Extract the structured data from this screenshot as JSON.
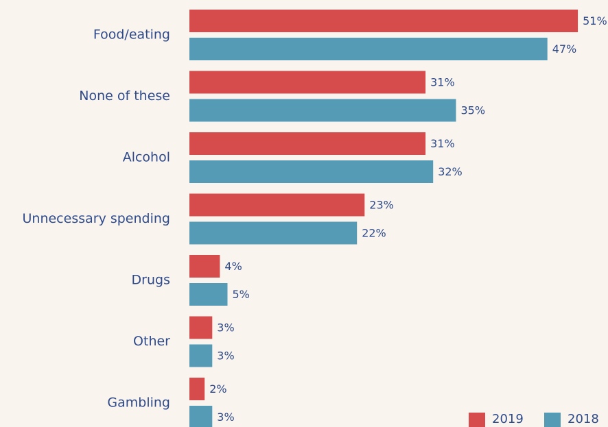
{
  "chart_data": {
    "type": "bar",
    "orientation": "horizontal",
    "categories": [
      "Food/eating",
      "None of these",
      "Alcohol",
      "Unnecessary spending",
      "Drugs",
      "Other",
      "Gambling"
    ],
    "series": [
      {
        "name": "2019",
        "color": "#d64b4b",
        "values": [
          51,
          31,
          31,
          23,
          4,
          3,
          2
        ],
        "value_labels": [
          "51%",
          "31%",
          "31%",
          "23%",
          "4%",
          "3%",
          "2%"
        ]
      },
      {
        "name": "2018",
        "color": "#559bb6",
        "values": [
          47,
          35,
          32,
          22,
          5,
          3,
          3
        ],
        "value_labels": [
          "47%",
          "35%",
          "32%",
          "22%",
          "5%",
          "3%",
          "3%"
        ]
      }
    ],
    "legend": "bottom-right"
  }
}
